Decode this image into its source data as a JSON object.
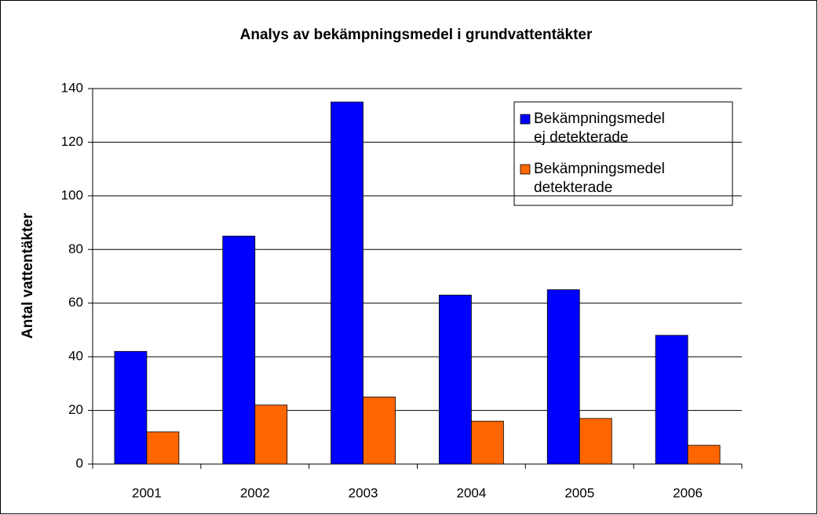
{
  "chart_data": {
    "type": "bar",
    "title": "Analys av bekämpningsmedel i grundvattentäkter",
    "y_label": "Antal vattentäkter",
    "categories": [
      "2001",
      "2002",
      "2003",
      "2004",
      "2005",
      "2006"
    ],
    "series": [
      {
        "name": "Bekämpningsmedel ej detekterade",
        "color": "#0000ff",
        "values": [
          42,
          85,
          135,
          63,
          65,
          48
        ]
      },
      {
        "name": "Bekämpningsmedel detekterade",
        "color": "#ff6600",
        "values": [
          12,
          22,
          25,
          16,
          17,
          7
        ]
      }
    ],
    "ylim": [
      0,
      140
    ],
    "yticks": [
      0,
      20,
      40,
      60,
      80,
      100,
      120,
      140
    ],
    "grid": true,
    "legend": "upper right"
  }
}
